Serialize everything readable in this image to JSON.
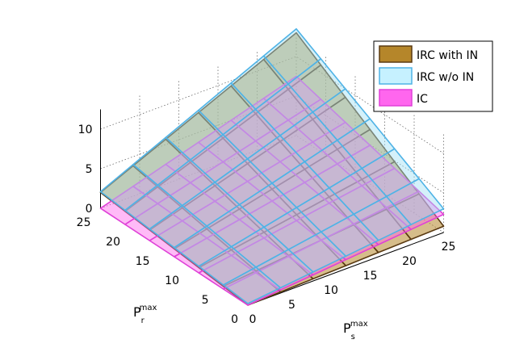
{
  "chart_data": {
    "type": "surface",
    "x_axis": {
      "base": "P",
      "sub": "s",
      "sup": "max",
      "ticks": [
        "0",
        "5",
        "10",
        "15",
        "20",
        "25"
      ],
      "range": [
        0,
        25
      ]
    },
    "y_axis": {
      "base": "P",
      "sub": "r",
      "sup": "max",
      "ticks": [
        "0",
        "5",
        "10",
        "15",
        "20",
        "25"
      ],
      "range": [
        0,
        25
      ]
    },
    "z_axis": {
      "ticks": [
        "0",
        "5",
        "10"
      ],
      "range": [
        0,
        12
      ]
    },
    "grid": true,
    "legend_position": "top-right",
    "series": [
      {
        "name": "IRC with IN",
        "color": "#b5862a",
        "edge": "#5a3a12",
        "corners": {
          "s0r0": 0.0,
          "s25r0": 0.8,
          "s0r25": 2.0,
          "s25r25": 13.0
        }
      },
      {
        "name": "IRC w/o IN",
        "color": "#9fe0f5",
        "edge": "#4fb3e6",
        "corners": {
          "s0r0": 0.2,
          "s25r0": 3.0,
          "s0r25": 2.1,
          "s25r25": 13.5
        }
      },
      {
        "name": "IC",
        "color": "#ff66ee",
        "edge": "#e040d8",
        "corners": {
          "s0r0": 0.0,
          "s25r0": 2.3,
          "s0r25": 0.0,
          "s25r25": 7.5
        }
      }
    ]
  }
}
